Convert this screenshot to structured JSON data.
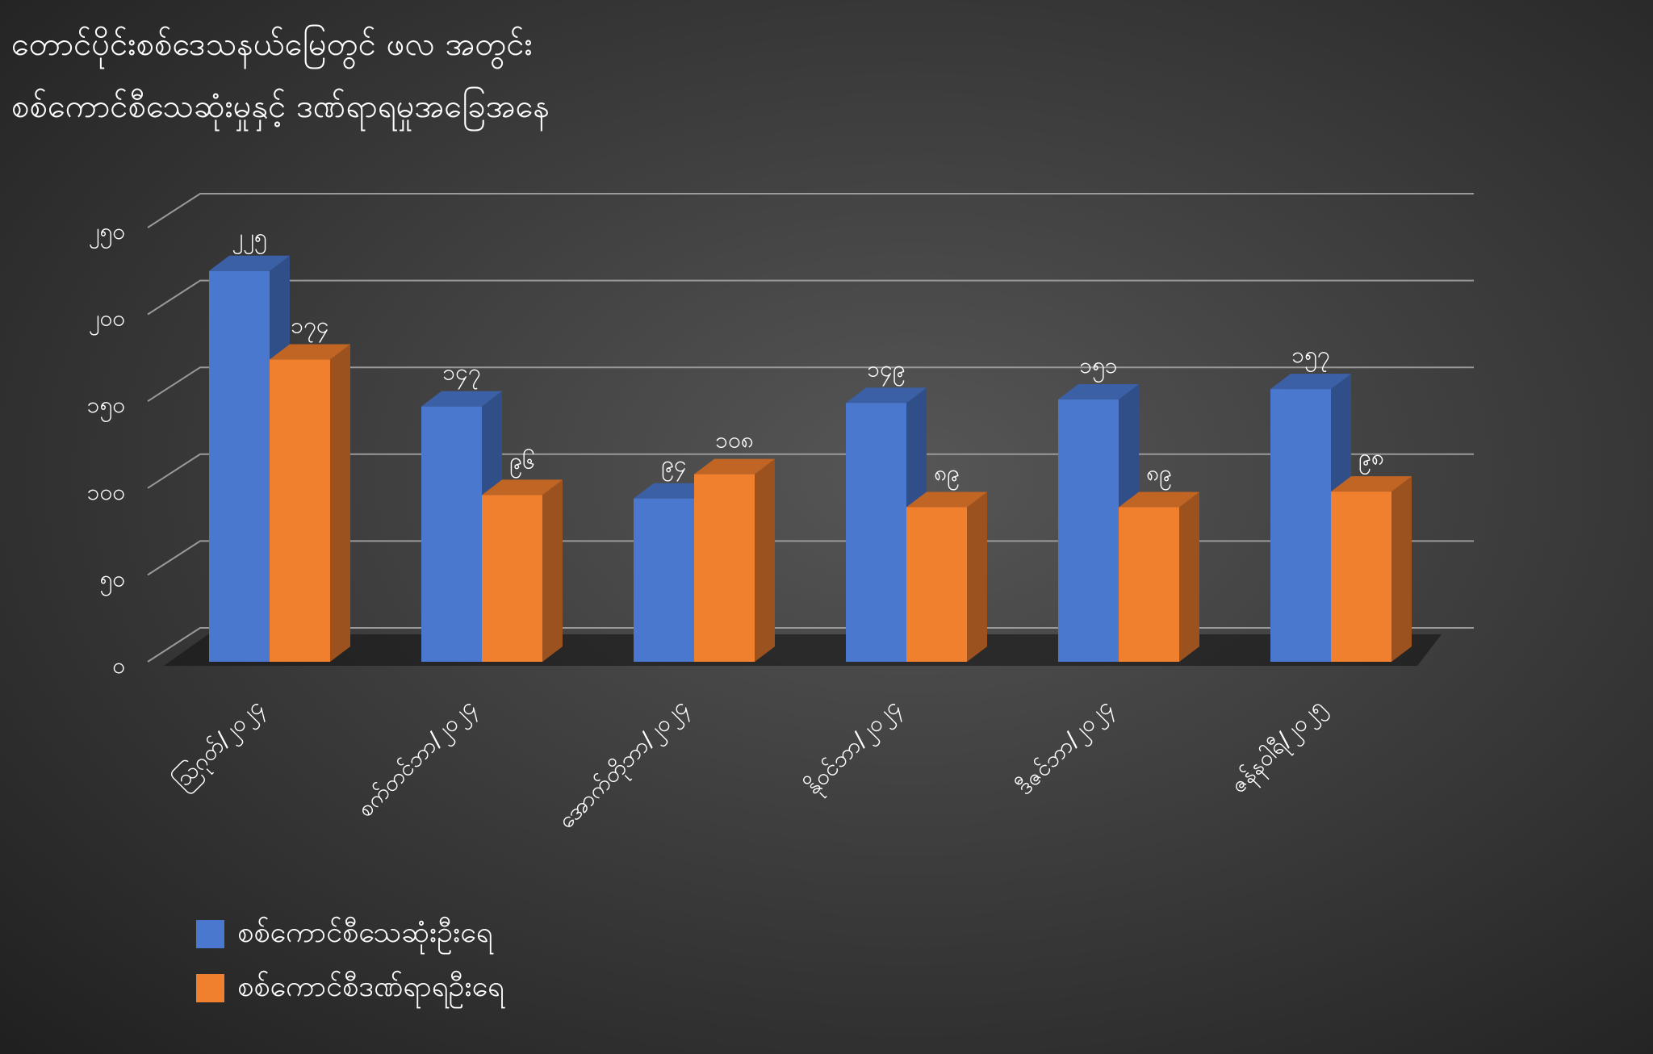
{
  "chart_data": {
    "type": "bar3d",
    "title": "တောင်ပိုင်းစစ်ဒေသနယ်မြေတွင် ဖလ အတွင်း",
    "subtitle": "စစ်ကောင်စီသေဆုံးမှုနှင့် ဒဏ်ရာရမှုအခြေအနေ",
    "categories": [
      "ဩဂုတ်/၂၀၂၄",
      "စက်တင်ဘာ/၂၀၂၄",
      "အောက်တိုဘာ/၂၀၂၄",
      "နိုဝင်ဘာ/၂၀၂၄",
      "ဒီဇင်ဘာ/၂၀၂၄",
      "ဇန်နဝါရီ/၂၀၂၅"
    ],
    "series": [
      {
        "name": "စစ်ကောင်စီသေဆုံးဦးရေ",
        "color": "#4a78cf",
        "values": [
          225,
          147,
          94,
          149,
          151,
          157
        ],
        "value_labels": [
          "၂၂၅",
          "၁၄၇",
          "၉၄",
          "၁၄၉",
          "၁၅၁",
          "၁၅၇"
        ]
      },
      {
        "name": "စစ်ကောင်စီဒဏ်ရာရဦးရေ",
        "color": "#f07f2e",
        "values": [
          174,
          96,
          108,
          89,
          89,
          98
        ],
        "value_labels": [
          "၁၇၄",
          "၉၆",
          "၁၀၈",
          "၈၉",
          "၈၉",
          "၉၈"
        ]
      }
    ],
    "ylim": [
      0,
      250
    ],
    "yticks": [
      {
        "value": 0,
        "label": "၀"
      },
      {
        "value": 50,
        "label": "၅၀"
      },
      {
        "value": 100,
        "label": "၁၀၀"
      },
      {
        "value": 150,
        "label": "၁၅၀"
      },
      {
        "value": 200,
        "label": "၂၀၀"
      },
      {
        "value": 250,
        "label": "၂၅၀"
      }
    ],
    "grid": true,
    "legend": "bottom-left"
  }
}
